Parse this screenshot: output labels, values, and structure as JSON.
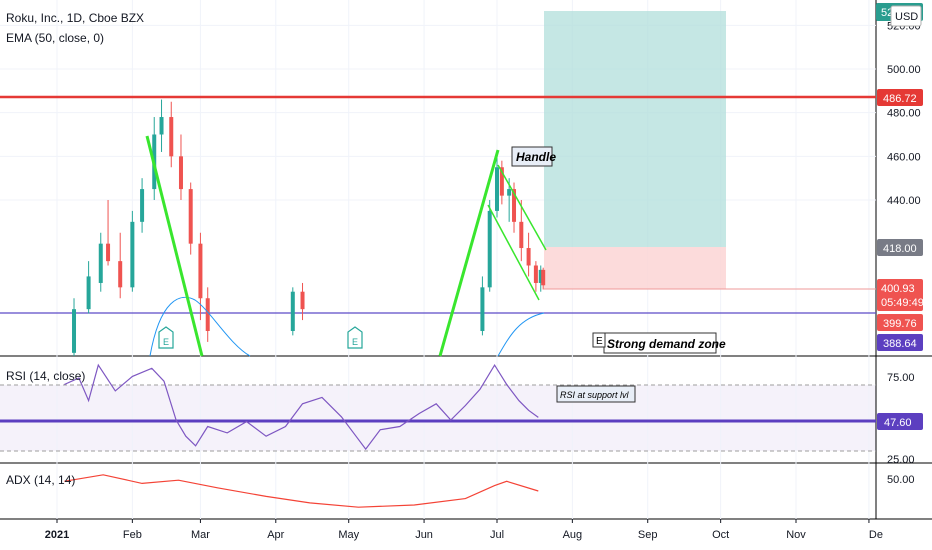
{
  "header": {
    "symbol_line": "Roku, Inc., 1D, Cboe BZX",
    "ema_line": "EMA (50, close, 0)",
    "currency": "USD"
  },
  "price_axis": {
    "ticks": [
      "520.00",
      "500.00",
      "480.00",
      "460.00",
      "440.00"
    ],
    "tags": {
      "resistance": "486.72",
      "entry": "418.00",
      "last": "400.93",
      "countdown": "05:49:49",
      "support": "399.76",
      "low": "388.64",
      "top": "52"
    }
  },
  "annotations": {
    "handle": "Handle",
    "demand": "Strong demand zone",
    "e_marker": "E",
    "rsi_note": "RSI at support lvl"
  },
  "rsi": {
    "title": "RSI (14, close)",
    "ticks": [
      "75.00",
      "25.00"
    ],
    "tag": "47.60"
  },
  "adx": {
    "title": "ADX (14, 14)",
    "ticks": [
      "50.00"
    ]
  },
  "time_axis": {
    "labels": [
      "2021",
      "Feb",
      "Mar",
      "Apr",
      "May",
      "Jun",
      "Jul",
      "Aug",
      "Sep",
      "Oct",
      "Nov",
      "De"
    ]
  },
  "colors": {
    "up": "#26a69a",
    "down": "#ef5350",
    "resistance": "#e53935",
    "support_line": "#5c4bc7",
    "trend": "#39e62e",
    "ema": "#2196f3",
    "rsi": "#7e57c2",
    "adx": "#f44336",
    "target_zone": "#b2dfdb",
    "stop_zone": "#fbd5d5"
  },
  "chart_data": {
    "type": "candlestick",
    "title": "Roku, Inc., 1D, Cboe BZX",
    "price_ticks": [
      520,
      500,
      480,
      460,
      440
    ],
    "price_ylim": [
      378,
      526
    ],
    "levels": {
      "resistance": 486.72,
      "entry": 418.0,
      "last": 400.93,
      "support": 399.76,
      "low": 388.64
    },
    "candles": [
      {
        "d": "2021-01-08",
        "o": 370,
        "h": 395,
        "l": 365,
        "c": 390
      },
      {
        "d": "2021-01-14",
        "o": 390,
        "h": 412,
        "l": 388,
        "c": 405
      },
      {
        "d": "2021-01-19",
        "o": 402,
        "h": 425,
        "l": 398,
        "c": 420
      },
      {
        "d": "2021-01-22",
        "o": 420,
        "h": 440,
        "l": 410,
        "c": 412
      },
      {
        "d": "2021-01-27",
        "o": 412,
        "h": 425,
        "l": 395,
        "c": 400
      },
      {
        "d": "2021-02-01",
        "o": 400,
        "h": 435,
        "l": 398,
        "c": 430
      },
      {
        "d": "2021-02-05",
        "o": 430,
        "h": 450,
        "l": 425,
        "c": 445
      },
      {
        "d": "2021-02-10",
        "o": 445,
        "h": 478,
        "l": 440,
        "c": 470
      },
      {
        "d": "2021-02-13",
        "o": 470,
        "h": 486,
        "l": 462,
        "c": 478
      },
      {
        "d": "2021-02-17",
        "o": 478,
        "h": 485,
        "l": 455,
        "c": 460
      },
      {
        "d": "2021-02-21",
        "o": 460,
        "h": 470,
        "l": 440,
        "c": 445
      },
      {
        "d": "2021-02-25",
        "o": 445,
        "h": 448,
        "l": 415,
        "c": 420
      },
      {
        "d": "2021-03-01",
        "o": 420,
        "h": 425,
        "l": 385,
        "c": 395
      },
      {
        "d": "2021-03-04",
        "o": 395,
        "h": 400,
        "l": 375,
        "c": 380
      },
      {
        "d": "2021-04-08",
        "o": 380,
        "h": 400,
        "l": 378,
        "c": 398
      },
      {
        "d": "2021-04-12",
        "o": 398,
        "h": 402,
        "l": 385,
        "c": 390
      },
      {
        "d": "2021-06-25",
        "o": 380,
        "h": 405,
        "l": 378,
        "c": 400
      },
      {
        "d": "2021-06-28",
        "o": 400,
        "h": 440,
        "l": 398,
        "c": 435
      },
      {
        "d": "2021-07-01",
        "o": 435,
        "h": 462,
        "l": 432,
        "c": 455
      },
      {
        "d": "2021-07-03",
        "o": 455,
        "h": 458,
        "l": 438,
        "c": 442
      },
      {
        "d": "2021-07-06",
        "o": 442,
        "h": 450,
        "l": 430,
        "c": 445
      },
      {
        "d": "2021-07-08",
        "o": 445,
        "h": 448,
        "l": 425,
        "c": 430
      },
      {
        "d": "2021-07-11",
        "o": 430,
        "h": 440,
        "l": 412,
        "c": 418
      },
      {
        "d": "2021-07-14",
        "o": 418,
        "h": 425,
        "l": 405,
        "c": 410
      },
      {
        "d": "2021-07-17",
        "o": 410,
        "h": 412,
        "l": 398,
        "c": 402
      },
      {
        "d": "2021-07-19",
        "o": 402,
        "h": 410,
        "l": 398,
        "c": 408
      },
      {
        "d": "2021-07-20",
        "o": 408,
        "h": 409,
        "l": 399,
        "c": 400.93
      }
    ],
    "rsi_ticks": [
      75,
      25
    ],
    "rsi_ylim": [
      20,
      85
    ],
    "rsi_bands": [
      70,
      30
    ],
    "rsi_level": 47.6,
    "rsi_points": [
      {
        "d": "2021-01-04",
        "v": 68
      },
      {
        "d": "2021-01-10",
        "v": 72
      },
      {
        "d": "2021-01-14",
        "v": 58
      },
      {
        "d": "2021-01-18",
        "v": 80
      },
      {
        "d": "2021-01-25",
        "v": 64
      },
      {
        "d": "2021-02-01",
        "v": 73
      },
      {
        "d": "2021-02-09",
        "v": 78
      },
      {
        "d": "2021-02-14",
        "v": 70
      },
      {
        "d": "2021-02-19",
        "v": 46
      },
      {
        "d": "2021-02-23",
        "v": 36
      },
      {
        "d": "2021-02-27",
        "v": 30
      },
      {
        "d": "2021-03-04",
        "v": 42
      },
      {
        "d": "2021-03-12",
        "v": 38
      },
      {
        "d": "2021-03-20",
        "v": 45
      },
      {
        "d": "2021-03-28",
        "v": 36
      },
      {
        "d": "2021-04-05",
        "v": 42
      },
      {
        "d": "2021-04-12",
        "v": 56
      },
      {
        "d": "2021-04-20",
        "v": 60
      },
      {
        "d": "2021-04-28",
        "v": 48
      },
      {
        "d": "2021-05-04",
        "v": 36
      },
      {
        "d": "2021-05-08",
        "v": 28
      },
      {
        "d": "2021-05-14",
        "v": 40
      },
      {
        "d": "2021-05-22",
        "v": 42
      },
      {
        "d": "2021-05-30",
        "v": 50
      },
      {
        "d": "2021-06-06",
        "v": 56
      },
      {
        "d": "2021-06-12",
        "v": 46
      },
      {
        "d": "2021-06-18",
        "v": 55
      },
      {
        "d": "2021-06-24",
        "v": 65
      },
      {
        "d": "2021-06-30",
        "v": 80
      },
      {
        "d": "2021-07-05",
        "v": 68
      },
      {
        "d": "2021-07-10",
        "v": 58
      },
      {
        "d": "2021-07-14",
        "v": 52
      },
      {
        "d": "2021-07-18",
        "v": 47.6
      }
    ],
    "adx_ticks": [
      50
    ],
    "adx_ylim": [
      10,
      60
    ],
    "adx_points": [
      {
        "d": "2021-01-04",
        "v": 44
      },
      {
        "d": "2021-01-20",
        "v": 50
      },
      {
        "d": "2021-02-05",
        "v": 42
      },
      {
        "d": "2021-02-20",
        "v": 45
      },
      {
        "d": "2021-03-08",
        "v": 38
      },
      {
        "d": "2021-03-28",
        "v": 30
      },
      {
        "d": "2021-04-15",
        "v": 24
      },
      {
        "d": "2021-05-05",
        "v": 20
      },
      {
        "d": "2021-05-28",
        "v": 22
      },
      {
        "d": "2021-06-18",
        "v": 28
      },
      {
        "d": "2021-06-30",
        "v": 40
      },
      {
        "d": "2021-07-05",
        "v": 44
      },
      {
        "d": "2021-07-18",
        "v": 35
      }
    ]
  }
}
